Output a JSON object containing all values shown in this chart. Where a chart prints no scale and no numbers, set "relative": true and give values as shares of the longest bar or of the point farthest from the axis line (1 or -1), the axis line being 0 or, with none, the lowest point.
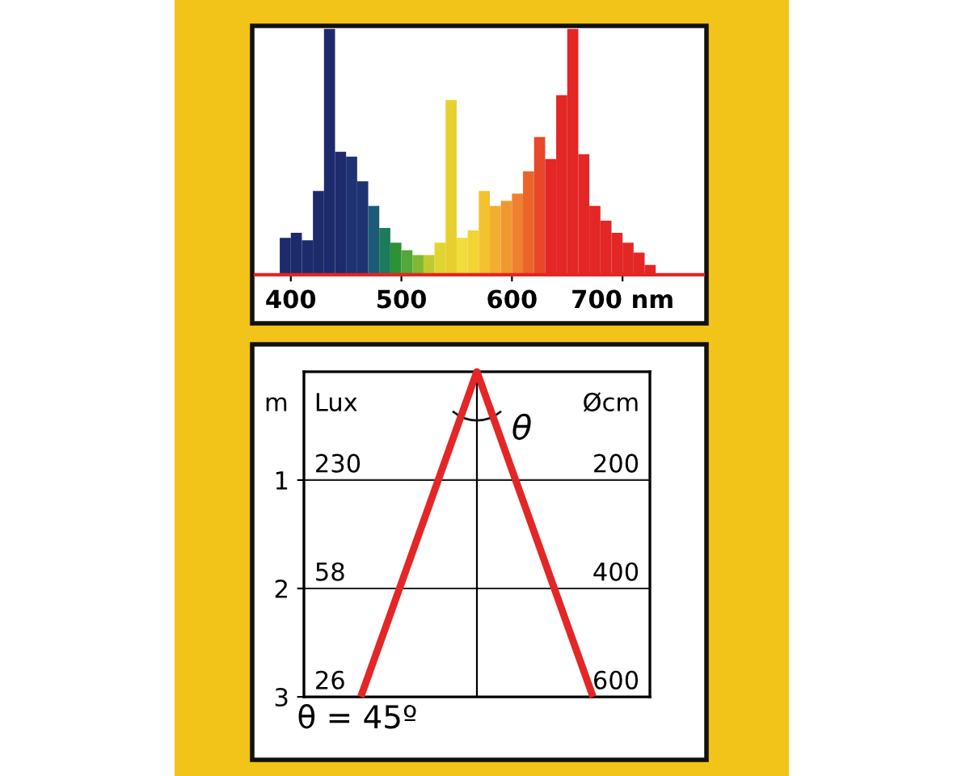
{
  "chart_data": [
    {
      "type": "bar",
      "relative": true,
      "x": [
        395,
        405,
        415,
        425,
        435,
        445,
        455,
        465,
        475,
        485,
        495,
        505,
        515,
        525,
        535,
        545,
        555,
        565,
        575,
        585,
        595,
        605,
        615,
        625,
        635,
        645,
        655,
        665,
        675,
        685,
        695,
        705,
        715,
        725
      ],
      "values": [
        0.15,
        0.17,
        0.14,
        0.34,
        1,
        0.5,
        0.48,
        0.38,
        0.28,
        0.19,
        0.13,
        0.1,
        0.08,
        0.08,
        0.13,
        0.71,
        0.15,
        0.18,
        0.34,
        0.28,
        0.3,
        0.33,
        0.42,
        0.56,
        0.47,
        0.73,
        1,
        0.49,
        0.28,
        0.22,
        0.17,
        0.13,
        0.09,
        0.04
      ],
      "colors": [
        "#1d2a6b",
        "#1d2a6b",
        "#1d2a6b",
        "#1d2a6b",
        "#1d2a6b",
        "#1d2a6b",
        "#1f3272",
        "#1f3272",
        "#1c5a78",
        "#1d7a5a",
        "#2b9236",
        "#52a83a",
        "#80b832",
        "#bccc30",
        "#e0d530",
        "#e8cf30",
        "#f0dc3a",
        "#f2d434",
        "#f4c230",
        "#f3ae30",
        "#f09830",
        "#ee8030",
        "#ec6528",
        "#e84828",
        "#e32626",
        "#e32626",
        "#e32626",
        "#e32626",
        "#e32626",
        "#e32626",
        "#e32626",
        "#e32626",
        "#e32626",
        "#e32626"
      ],
      "xlim": [
        368,
        773
      ],
      "xticks": [
        400,
        500,
        600,
        {
          "value": 700,
          "label": "700 nm"
        }
      ],
      "tick_labels": "x"
    },
    {
      "type": "line",
      "categories": [
        null,
        null,
        null
      ],
      "series": [
        {
          "color": "#e32626",
          "values": [
            3,
            0,
            3
          ]
        }
      ],
      "ylim": [
        3,
        0
      ],
      "yticks": [
        1,
        2,
        3
      ],
      "ylabel": "m",
      "grid": "y",
      "tick_labels": "y",
      "annotations": [
        "Lux",
        "Øcm",
        "230",
        "200",
        "58",
        "400",
        "26",
        "600",
        "θ",
        "θ = 45º"
      ]
    }
  ]
}
